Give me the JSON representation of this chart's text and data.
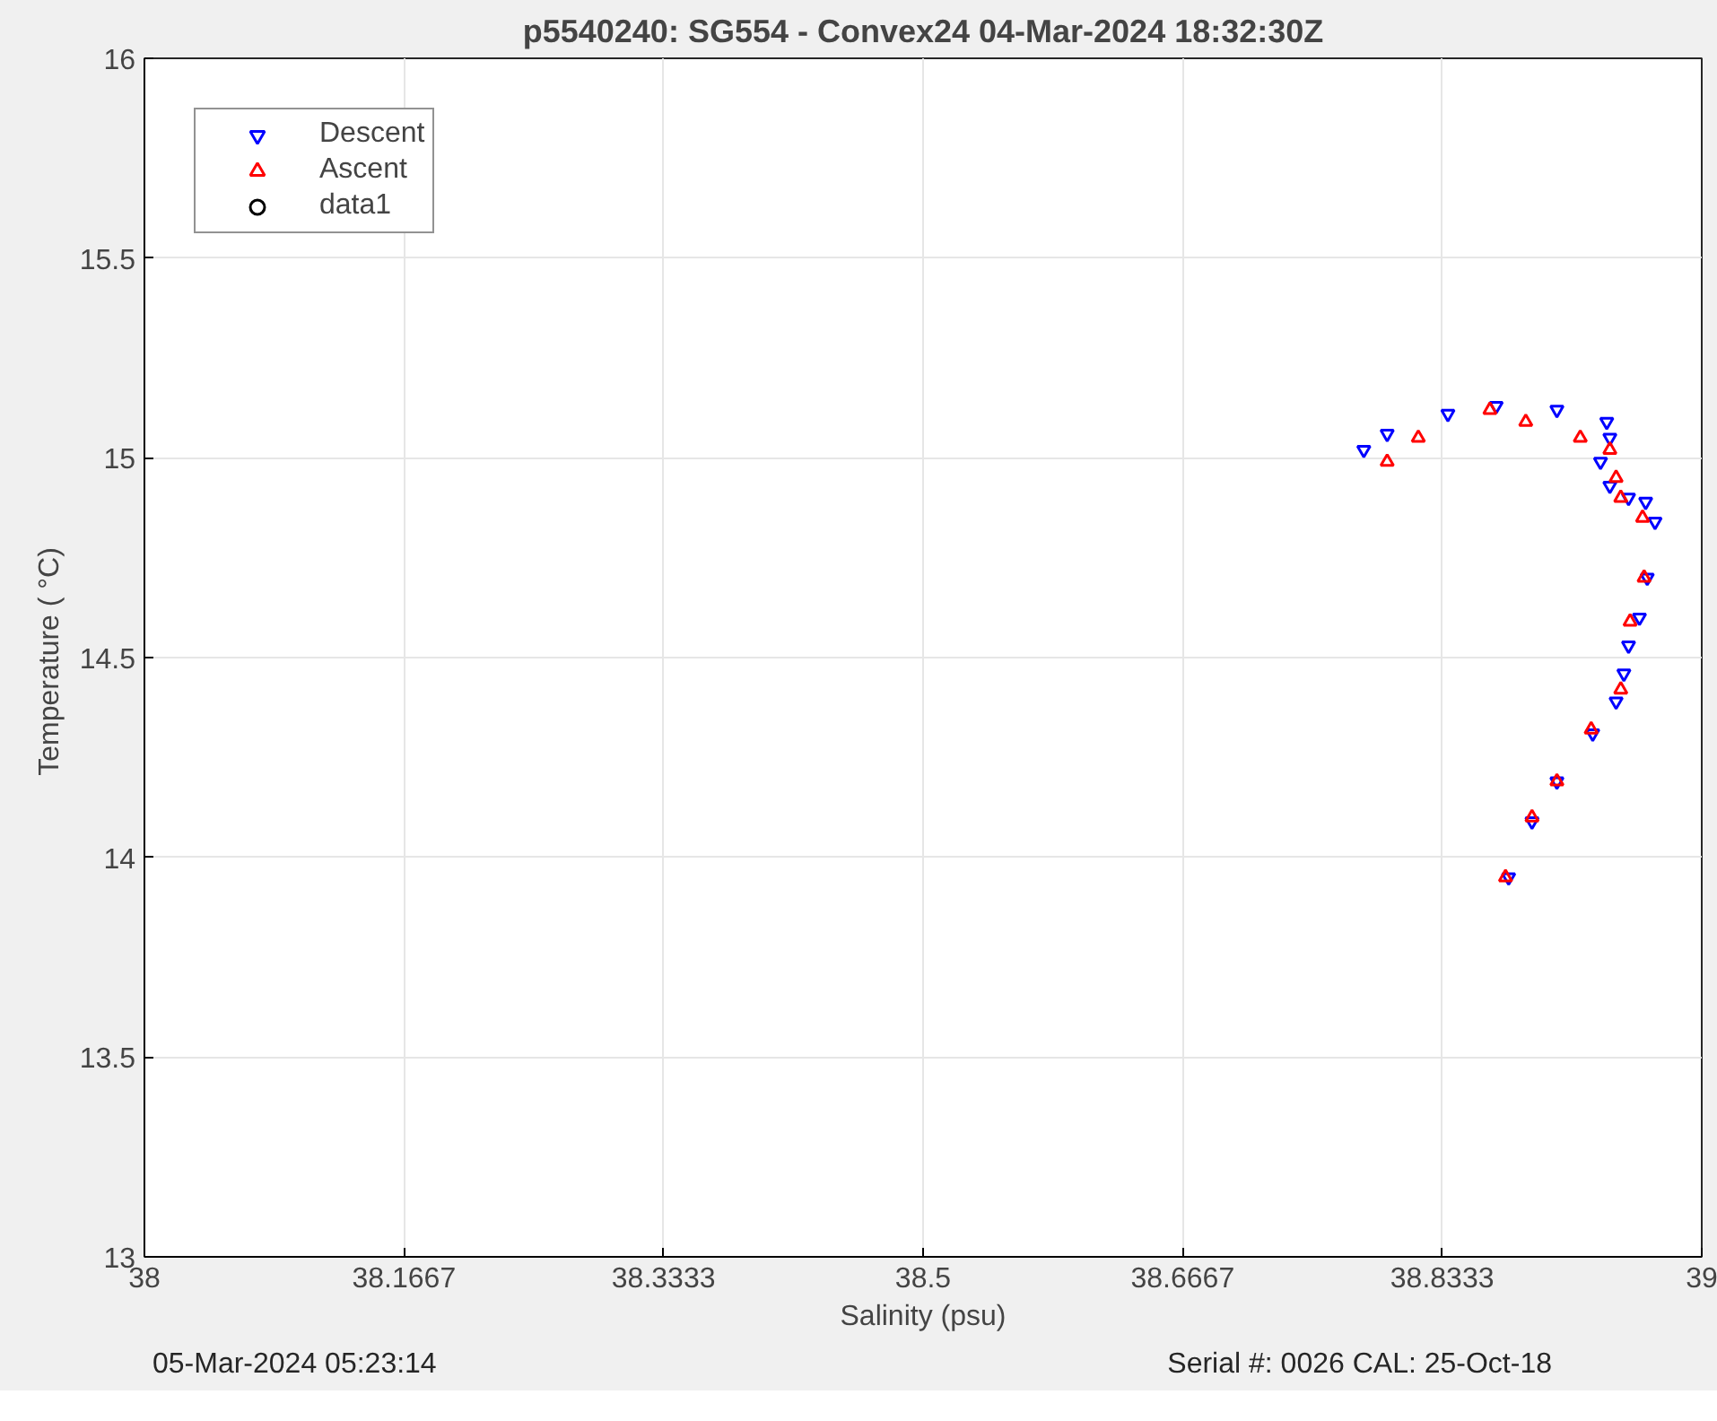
{
  "chart_data": {
    "type": "scatter",
    "title": "p5540240: SG554 - Convex24 04-Mar-2024 18:32:30Z",
    "xlabel": "Salinity (psu)",
    "ylabel": "Temperature (  °C)",
    "xlim": [
      38,
      39
    ],
    "xticks": [
      38,
      {
        "value": 38.16667,
        "label": "38.1667"
      },
      {
        "value": 38.33333,
        "label": "38.3333"
      },
      38.5,
      {
        "value": 38.66667,
        "label": "38.6667"
      },
      {
        "value": 38.83333,
        "label": "38.8333"
      },
      39
    ],
    "ylim": [
      13,
      16
    ],
    "yticks": [
      13,
      13.5,
      14,
      14.5,
      15,
      15.5,
      16
    ],
    "grid": true,
    "legend": "top left",
    "series": [
      {
        "name": "Descent",
        "color": "#0000ff",
        "marker": "triangle_down",
        "x": [
          38.783,
          38.798,
          38.837,
          38.868,
          38.907,
          38.939,
          38.941,
          38.935,
          38.941,
          38.953,
          38.964,
          38.97,
          38.965,
          38.96,
          38.953,
          38.95,
          38.945,
          38.93,
          38.907,
          38.891,
          38.876
        ],
        "values": [
          15.02,
          15.06,
          15.11,
          15.13,
          15.12,
          15.09,
          15.05,
          14.99,
          14.93,
          14.9,
          14.89,
          14.84,
          14.7,
          14.6,
          14.53,
          14.46,
          14.39,
          14.31,
          14.19,
          14.09,
          13.95
        ]
      },
      {
        "name": "Ascent",
        "color": "#ff0000",
        "marker": "triangle",
        "x": [
          38.798,
          38.818,
          38.864,
          38.887,
          38.922,
          38.941,
          38.945,
          38.948,
          38.962,
          38.963,
          38.954,
          38.948,
          38.929,
          38.907,
          38.891,
          38.874
        ],
        "values": [
          14.99,
          15.05,
          15.12,
          15.09,
          15.05,
          15.02,
          14.95,
          14.9,
          14.85,
          14.7,
          14.59,
          14.42,
          14.32,
          14.19,
          14.1,
          13.95
        ]
      },
      {
        "name": "data1",
        "type": "other",
        "color": "#000000"
      }
    ],
    "annotations": [
      "05-Mar-2024 05:23:14",
      "Serial #: 0026 CAL: 25-Oct-18"
    ]
  }
}
